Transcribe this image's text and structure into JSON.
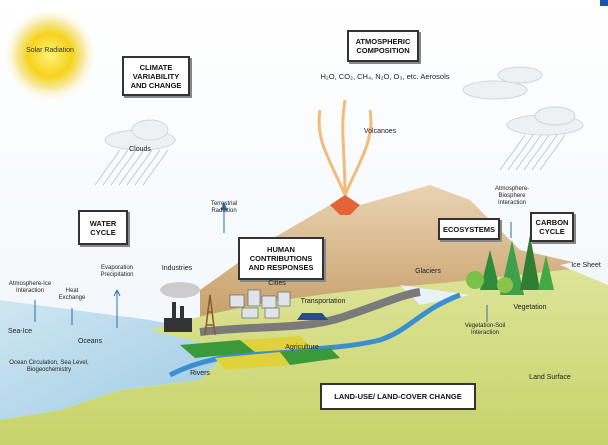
{
  "solar_radiation": "Solar Radiation",
  "climate_variability": "CLIMATE VARIABILITY AND CHANGE",
  "atmospheric_composition": "ATMOSPHERIC COMPOSITION",
  "gases": "H₂O, CO₂, CH₄, N₂O, O₃, etc. Aerosols",
  "clouds": "Clouds",
  "volcanoes": "Volcanoes",
  "terrestrial_radiation": "Terrestrial Radiation",
  "water_cycle": "WATER CYCLE",
  "human_contributions": "HUMAN CONTRIBUTIONS AND RESPONSES",
  "ecosystems": "ECOSYSTEMS",
  "carbon_cycle": "CARBON CYCLE",
  "atmosphere_biosphere": "Atmosphere-Biosphere Interaction",
  "atmosphere_ice": "Atmosphere-Ice Interaction",
  "heat_exchange": "Heat Exchange",
  "evaporation": "Evaporation Precipitation",
  "industries": "Industries",
  "cities": "Cities",
  "transportation": "Transportation",
  "glaciers": "Glaciers",
  "ice_sheet": "Ice Sheet",
  "vegetation": "Vegetation",
  "sea_ice": "Sea-Ice",
  "oceans": "Oceans",
  "agriculture": "Agriculture",
  "vegetation_soil": "Vegetation-Soil Interaction",
  "ocean_circulation": "Ocean Circulation, Sea Level, Biogeochemistry",
  "rivers": "Rivers",
  "land_surface": "Land Surface",
  "land_use": "LAND-USE/ LAND-COVER CHANGE"
}
